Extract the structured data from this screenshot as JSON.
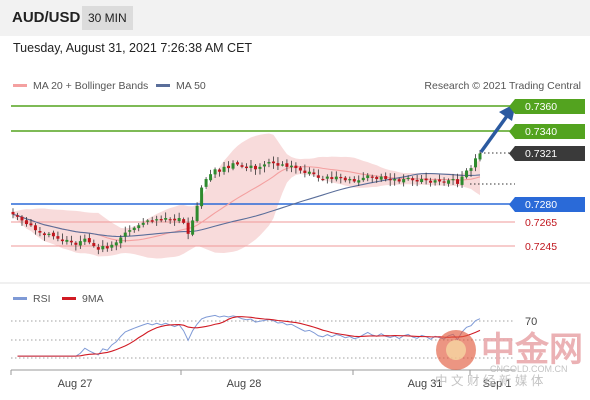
{
  "header": {
    "symbol": "AUD/USD",
    "timeframe": "30 MIN"
  },
  "datetime": "Tuesday, August 31, 2021 7:26:38 AM CET",
  "legend": {
    "ma20": "MA 20 + Bollinger Bands",
    "ma50": "MA 50",
    "credit": "Research © 2021 Trading Central"
  },
  "colors": {
    "ma20": "#f4a0a0",
    "ma50": "#5a6e9a",
    "band": "#f7d5d5",
    "green": "#53a31f",
    "blue": "#2a6ad8",
    "red": "#e25555",
    "rsi": "#7f9ad6",
    "rsi_ma": "#d11b24",
    "candle_up": "#2e8b2e",
    "candle_down": "#c0161e",
    "arrow": "#2b5aa0"
  },
  "levels": [
    {
      "label": "0.7360",
      "kind": "resistance",
      "style": "green-tag"
    },
    {
      "label": "0.7340",
      "kind": "resistance",
      "style": "green-tag"
    },
    {
      "label": "0.7321",
      "kind": "last",
      "style": "dark-tag"
    },
    {
      "label": "0.7280",
      "kind": "pivot",
      "style": "blue-tag"
    },
    {
      "label": "0.7265",
      "kind": "support",
      "style": "red-text"
    },
    {
      "label": "0.7245",
      "kind": "support",
      "style": "red-text"
    }
  ],
  "rsi_legend": {
    "rsi": "RSI",
    "ma": "9MA"
  },
  "rsi_level": "70",
  "xaxis": [
    "Aug 27",
    "Aug 28",
    "Aug 31",
    "Sep 1"
  ],
  "watermark": {
    "big": "中金网",
    "small": "CNGOLD.COM.CN",
    "sub": "中 文 财 经 新 媒 体"
  },
  "chart_data": {
    "type": "candlestick",
    "title": "AUD/USD 30 MIN",
    "ylim": [
      0.7235,
      0.7368
    ],
    "levels": [
      0.736,
      0.734,
      0.7321,
      0.728,
      0.7265,
      0.7245
    ],
    "x_ticks": [
      "Aug 27",
      "Aug 28",
      "Aug 31",
      "Sep 1"
    ],
    "close": [
      0.7271,
      0.7269,
      0.7266,
      0.7263,
      0.7262,
      0.7258,
      0.7256,
      0.7254,
      0.7255,
      0.7253,
      0.7251,
      0.7249,
      0.725,
      0.7248,
      0.7246,
      0.7249,
      0.7251,
      0.7248,
      0.7245,
      0.7242,
      0.7245,
      0.7243,
      0.7246,
      0.7248,
      0.7252,
      0.7256,
      0.7258,
      0.726,
      0.7262,
      0.7264,
      0.7266,
      0.7265,
      0.7267,
      0.7266,
      0.7268,
      0.7267,
      0.7266,
      0.7268,
      0.7264,
      0.7255,
      0.7266,
      0.7278,
      0.7293,
      0.73,
      0.7304,
      0.7308,
      0.7306,
      0.731,
      0.7309,
      0.7313,
      0.7312,
      0.731,
      0.7309,
      0.7311,
      0.7308,
      0.731,
      0.7312,
      0.7314,
      0.7313,
      0.7311,
      0.7312,
      0.731,
      0.7311,
      0.7309,
      0.7307,
      0.7305,
      0.7306,
      0.7304,
      0.7301,
      0.73,
      0.7302,
      0.73,
      0.7302,
      0.7301,
      0.7299,
      0.73,
      0.7298,
      0.7299,
      0.7301,
      0.7303,
      0.7301,
      0.73,
      0.7302,
      0.73,
      0.7299,
      0.73,
      0.7298,
      0.73,
      0.7301,
      0.7299,
      0.7298,
      0.73,
      0.7299,
      0.7297,
      0.7299,
      0.7298,
      0.7297,
      0.7299,
      0.73,
      0.7296,
      0.7302,
      0.7307,
      0.7309,
      0.7317,
      0.7321
    ],
    "rsi_level": 70
  }
}
